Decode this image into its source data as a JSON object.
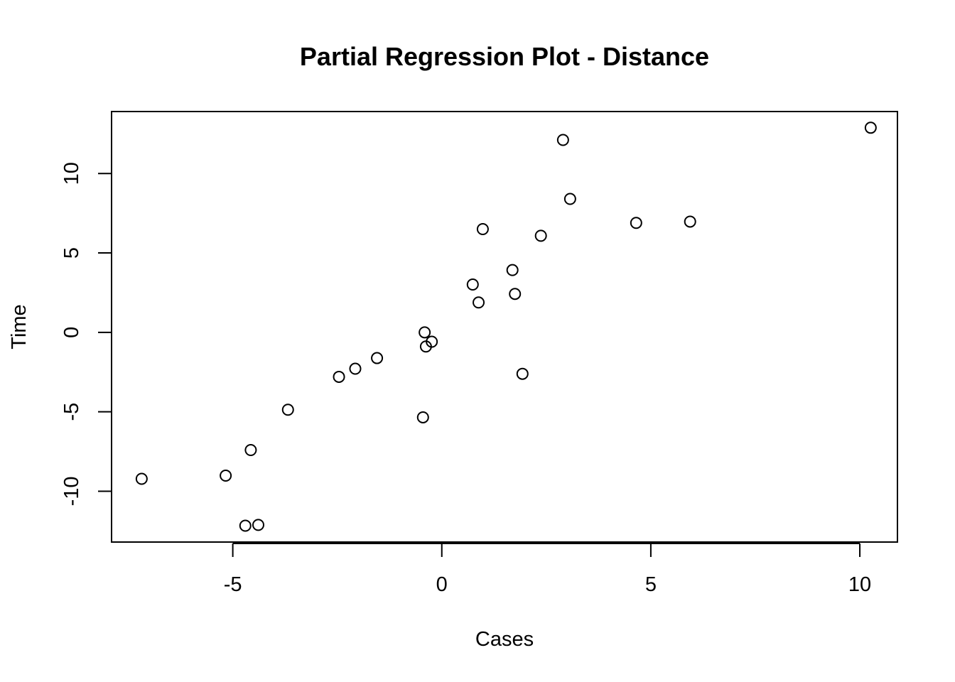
{
  "chart_data": {
    "type": "scatter",
    "title": "Partial Regression Plot - Distance",
    "xlabel": "Cases",
    "ylabel": "Time",
    "xlim": [
      -7.9,
      10.9
    ],
    "ylim": [
      -13.2,
      13.9
    ],
    "x_ticks": [
      -5,
      0,
      5,
      10
    ],
    "x_tick_labels": [
      "-5",
      "0",
      "5",
      "10"
    ],
    "y_ticks": [
      -10,
      -5,
      0,
      5,
      10
    ],
    "y_tick_labels": [
      "-10",
      "-5",
      "0",
      "5",
      "10"
    ],
    "grid": false,
    "legend": "none",
    "x": [
      -7.18,
      -5.17,
      -4.7,
      -4.39,
      -4.57,
      -3.68,
      -2.46,
      -2.07,
      -1.55,
      -0.45,
      -0.41,
      -0.38,
      -0.24,
      0.74,
      0.88,
      0.98,
      1.69,
      1.75,
      1.93,
      2.37,
      2.9,
      3.07,
      4.65,
      5.94,
      10.26
    ],
    "y": [
      -9.22,
      -9.02,
      -12.17,
      -12.12,
      -7.41,
      -4.87,
      -2.8,
      -2.29,
      -1.62,
      -5.35,
      0.0,
      -0.89,
      -0.59,
      3.01,
      1.88,
      6.5,
      3.92,
      2.42,
      -2.61,
      6.08,
      12.11,
      8.4,
      6.89,
      6.97,
      12.88
    ]
  }
}
